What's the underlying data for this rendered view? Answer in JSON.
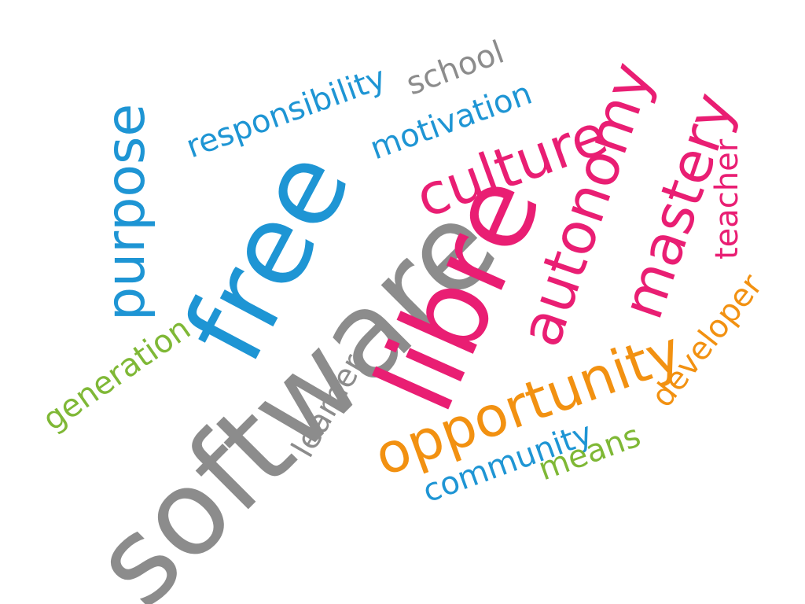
{
  "words": {
    "software": "software",
    "libre": "libre",
    "free": "free",
    "purpose": "purpose",
    "autonomy": "autonomy",
    "mastery": "mastery",
    "culture": "culture",
    "opportunity": "opportunity",
    "responsibility": "responsibility",
    "school": "school",
    "motivation": "motivation",
    "teacher": "teacher",
    "generation": "generation",
    "learner": "learner",
    "community": "community",
    "means": "means",
    "developer": "developer"
  },
  "colors": {
    "gray": "#8c8c8c",
    "blue": "#1e95d4",
    "pink": "#e91e73",
    "orange": "#f29111",
    "green": "#7fb836"
  }
}
